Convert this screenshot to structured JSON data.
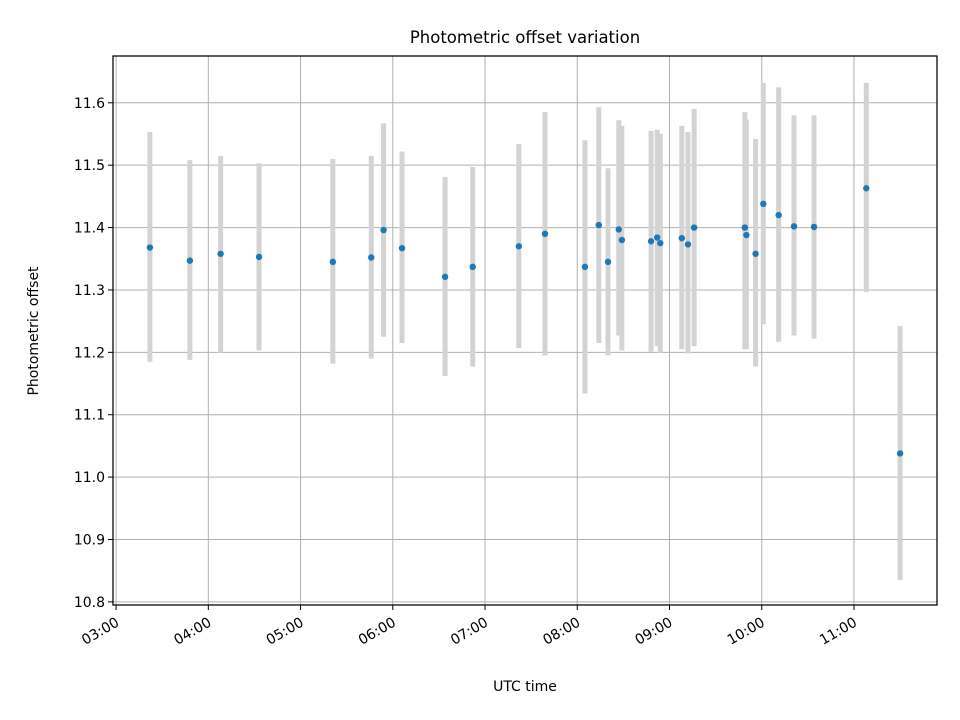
{
  "chart_data": {
    "type": "scatter",
    "title": "Photometric offset variation",
    "xlabel": "UTC time",
    "ylabel": "Photometric offset",
    "x_unit": "UTC time of day",
    "xlim": [
      "02:58",
      "11:54"
    ],
    "ylim": [
      10.795,
      11.675
    ],
    "x_ticks": [
      "03:00",
      "04:00",
      "05:00",
      "06:00",
      "07:00",
      "08:00",
      "09:00",
      "10:00",
      "11:00"
    ],
    "y_ticks": [
      10.8,
      10.9,
      11.0,
      11.1,
      11.2,
      11.3,
      11.4,
      11.5,
      11.6
    ],
    "y_tick_labels": [
      "10.8",
      "10.9",
      "11.0",
      "11.1",
      "11.2",
      "11.3",
      "11.4",
      "11.5",
      "11.6"
    ],
    "grid": true,
    "legend": "none",
    "colors": {
      "point": "#1f77b4",
      "errorbar": "#d3d3d3",
      "grid": "#b0b0b0"
    },
    "points": [
      {
        "x": "03:22",
        "y": 11.368,
        "ylow": 11.185,
        "yhigh": 11.553
      },
      {
        "x": "03:48",
        "y": 11.347,
        "ylow": 11.188,
        "yhigh": 11.508
      },
      {
        "x": "04:08",
        "y": 11.358,
        "ylow": 11.2,
        "yhigh": 11.515
      },
      {
        "x": "04:33",
        "y": 11.353,
        "ylow": 11.203,
        "yhigh": 11.503
      },
      {
        "x": "05:21",
        "y": 11.345,
        "ylow": 11.182,
        "yhigh": 11.51
      },
      {
        "x": "05:46",
        "y": 11.352,
        "ylow": 11.19,
        "yhigh": 11.515
      },
      {
        "x": "05:54",
        "y": 11.396,
        "ylow": 11.225,
        "yhigh": 11.567
      },
      {
        "x": "06:06",
        "y": 11.367,
        "ylow": 11.215,
        "yhigh": 11.522
      },
      {
        "x": "06:34",
        "y": 11.321,
        "ylow": 11.162,
        "yhigh": 11.481
      },
      {
        "x": "06:52",
        "y": 11.337,
        "ylow": 11.177,
        "yhigh": 11.497
      },
      {
        "x": "07:22",
        "y": 11.37,
        "ylow": 11.207,
        "yhigh": 11.534
      },
      {
        "x": "07:39",
        "y": 11.39,
        "ylow": 11.195,
        "yhigh": 11.585
      },
      {
        "x": "08:05",
        "y": 11.337,
        "ylow": 11.134,
        "yhigh": 11.54
      },
      {
        "x": "08:14",
        "y": 11.404,
        "ylow": 11.215,
        "yhigh": 11.593
      },
      {
        "x": "08:20",
        "y": 11.345,
        "ylow": 11.195,
        "yhigh": 11.495
      },
      {
        "x": "08:27",
        "y": 11.397,
        "ylow": 11.227,
        "yhigh": 11.572
      },
      {
        "x": "08:29",
        "y": 11.38,
        "ylow": 11.203,
        "yhigh": 11.563
      },
      {
        "x": "08:48",
        "y": 11.378,
        "ylow": 11.201,
        "yhigh": 11.555
      },
      {
        "x": "08:52",
        "y": 11.384,
        "ylow": 11.21,
        "yhigh": 11.557
      },
      {
        "x": "08:54",
        "y": 11.375,
        "ylow": 11.2,
        "yhigh": 11.55
      },
      {
        "x": "09:08",
        "y": 11.383,
        "ylow": 11.205,
        "yhigh": 11.563
      },
      {
        "x": "09:12",
        "y": 11.373,
        "ylow": 11.198,
        "yhigh": 11.553
      },
      {
        "x": "09:16",
        "y": 11.4,
        "ylow": 11.21,
        "yhigh": 11.59
      },
      {
        "x": "09:49",
        "y": 11.4,
        "ylow": 11.205,
        "yhigh": 11.585
      },
      {
        "x": "09:50",
        "y": 11.388,
        "ylow": 11.205,
        "yhigh": 11.573
      },
      {
        "x": "09:56",
        "y": 11.358,
        "ylow": 11.177,
        "yhigh": 11.542
      },
      {
        "x": "10:01",
        "y": 11.438,
        "ylow": 11.245,
        "yhigh": 11.632
      },
      {
        "x": "10:11",
        "y": 11.42,
        "ylow": 11.217,
        "yhigh": 11.625
      },
      {
        "x": "10:21",
        "y": 11.402,
        "ylow": 11.227,
        "yhigh": 11.58
      },
      {
        "x": "10:34",
        "y": 11.401,
        "ylow": 11.222,
        "yhigh": 11.58
      },
      {
        "x": "11:08",
        "y": 11.463,
        "ylow": 11.297,
        "yhigh": 11.632
      },
      {
        "x": "11:30",
        "y": 11.038,
        "ylow": 10.835,
        "yhigh": 11.242
      }
    ]
  }
}
